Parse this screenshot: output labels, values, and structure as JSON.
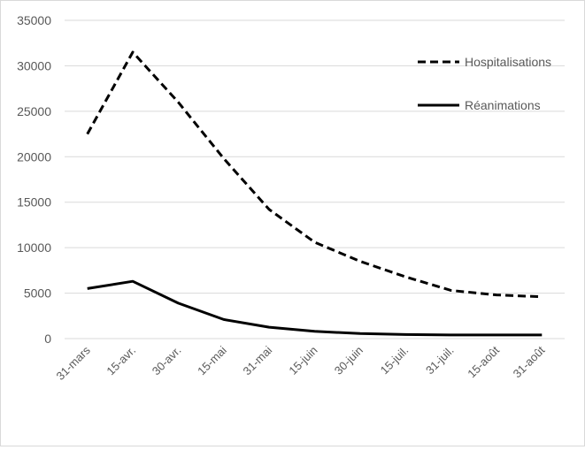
{
  "chart_data": {
    "type": "line",
    "title": "",
    "xlabel": "",
    "ylabel": "",
    "categories": [
      "31-mars",
      "15-avr.",
      "30-avr.",
      "15-mai",
      "31-mai",
      "15-juin",
      "30-juin",
      "15-juil.",
      "31-juil.",
      "15-août",
      "31-août"
    ],
    "ylim": [
      0,
      35000
    ],
    "yticks": [
      0,
      5000,
      10000,
      15000,
      20000,
      25000,
      30000,
      35000
    ],
    "grid": true,
    "legend_position": "right",
    "series": [
      {
        "name": "Hospitalisations",
        "style": "dashed",
        "color": "#000000",
        "values": [
          22500,
          31500,
          26000,
          19800,
          14200,
          10600,
          8500,
          6800,
          5300,
          4800,
          4600
        ]
      },
      {
        "name": "Réanimations",
        "style": "solid",
        "color": "#000000",
        "values": [
          5500,
          6300,
          3900,
          2100,
          1250,
          800,
          550,
          450,
          400,
          400,
          400
        ]
      }
    ]
  }
}
